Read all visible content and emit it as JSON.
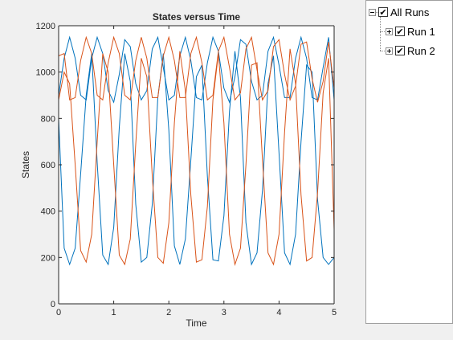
{
  "chart_data": {
    "type": "line",
    "title": "States versus Time",
    "xlabel": "Time",
    "ylabel": "States",
    "xlim": [
      0,
      5
    ],
    "ylim": [
      0,
      1200
    ],
    "xticks": [
      "0",
      "1",
      "2",
      "3",
      "4",
      "5"
    ],
    "yticks": [
      "0",
      "200",
      "400",
      "600",
      "800",
      "1000",
      "1200"
    ],
    "grid": false,
    "series": [
      {
        "color": "#0072BD",
        "x": [
          0,
          0.1,
          0.2,
          0.3,
          0.4,
          0.5,
          0.6,
          0.7,
          0.8,
          0.9,
          1.0,
          1.1,
          1.2,
          1.3,
          1.4,
          1.5,
          1.6,
          1.7,
          1.8,
          1.9,
          2.0,
          2.1,
          2.2,
          2.3,
          2.4,
          2.5,
          2.6,
          2.7,
          2.8,
          2.9,
          3.0,
          3.1,
          3.2,
          3.3,
          3.4,
          3.5,
          3.6,
          3.7,
          3.8,
          3.9,
          4.0,
          4.1,
          4.2,
          4.3,
          4.4,
          4.5,
          4.6,
          4.7,
          4.8,
          4.9,
          5.0
        ],
        "y": [
          800,
          240,
          170,
          240,
          560,
          900,
          1080,
          610,
          210,
          170,
          330,
          760,
          1080,
          960,
          430,
          180,
          200,
          430,
          890,
          1080,
          750,
          250,
          170,
          280,
          620,
          980,
          1030,
          550,
          190,
          185,
          380,
          830,
          1090,
          890,
          350,
          170,
          220,
          490,
          950,
          1070,
          650,
          220,
          170,
          300,
          700,
          1030,
          1000,
          450,
          200,
          170,
          200
        ]
      },
      {
        "color": "#0072BD",
        "x": [
          0,
          0.1,
          0.2,
          0.3,
          0.4,
          0.5,
          0.6,
          0.7,
          0.8,
          0.9,
          1.0,
          1.1,
          1.2,
          1.3,
          1.4,
          1.5,
          1.6,
          1.7,
          1.8,
          1.9,
          2.0,
          2.1,
          2.2,
          2.3,
          2.4,
          2.5,
          2.6,
          2.7,
          2.8,
          2.9,
          3.0,
          3.1,
          3.2,
          3.3,
          3.4,
          3.5,
          3.6,
          3.7,
          3.8,
          3.9,
          4.0,
          4.1,
          4.2,
          4.3,
          4.4,
          4.5,
          4.6,
          4.7,
          4.8,
          4.9,
          5.0
        ],
        "y": [
          900,
          1060,
          1150,
          1060,
          900,
          880,
          1060,
          1150,
          1080,
          920,
          870,
          990,
          1140,
          1110,
          950,
          880,
          920,
          1100,
          1150,
          1020,
          880,
          900,
          1070,
          1150,
          1050,
          890,
          880,
          1040,
          1150,
          1090,
          930,
          870,
          980,
          1140,
          1120,
          960,
          880,
          900,
          1090,
          1150,
          1030,
          890,
          890,
          1060,
          1150,
          1060,
          890,
          880,
          1020,
          1150,
          880
        ]
      },
      {
        "color": "#D95319",
        "x": [
          0,
          0.1,
          0.2,
          0.3,
          0.4,
          0.5,
          0.6,
          0.7,
          0.8,
          0.9,
          1.0,
          1.1,
          1.2,
          1.3,
          1.4,
          1.5,
          1.6,
          1.7,
          1.8,
          1.9,
          2.0,
          2.1,
          2.2,
          2.3,
          2.4,
          2.5,
          2.6,
          2.7,
          2.8,
          2.9,
          3.0,
          3.1,
          3.2,
          3.3,
          3.4,
          3.5,
          3.6,
          3.7,
          3.8,
          3.9,
          4.0,
          4.1,
          4.2,
          4.3,
          4.4,
          4.5,
          4.6,
          4.7,
          4.8,
          4.9,
          5.0
        ],
        "y": [
          880,
          1000,
          950,
          600,
          230,
          180,
          300,
          700,
          1080,
          1000,
          600,
          210,
          170,
          280,
          690,
          1060,
          980,
          550,
          200,
          175,
          350,
          780,
          1090,
          920,
          470,
          180,
          190,
          420,
          880,
          1080,
          780,
          300,
          170,
          240,
          600,
          1030,
          1040,
          620,
          220,
          170,
          300,
          740,
          1100,
          950,
          470,
          185,
          200,
          480,
          910,
          1060,
          320
        ]
      },
      {
        "color": "#D95319",
        "x": [
          0,
          0.1,
          0.2,
          0.3,
          0.4,
          0.5,
          0.6,
          0.7,
          0.8,
          0.9,
          1.0,
          1.1,
          1.2,
          1.3,
          1.4,
          1.5,
          1.6,
          1.7,
          1.8,
          1.9,
          2.0,
          2.1,
          2.2,
          2.3,
          2.4,
          2.5,
          2.6,
          2.7,
          2.8,
          2.9,
          3.0,
          3.1,
          3.2,
          3.3,
          3.4,
          3.5,
          3.6,
          3.7,
          3.8,
          3.9,
          4.0,
          4.1,
          4.2,
          4.3,
          4.4,
          4.5,
          4.6,
          4.7,
          4.8,
          4.9,
          5.0
        ],
        "y": [
          1070,
          1080,
          880,
          890,
          1050,
          1150,
          1080,
          900,
          880,
          1040,
          1150,
          1080,
          900,
          880,
          1050,
          1150,
          1060,
          890,
          890,
          1070,
          1150,
          1050,
          890,
          890,
          1080,
          1150,
          1040,
          880,
          900,
          1090,
          1150,
          1020,
          880,
          910,
          1100,
          1150,
          1010,
          880,
          920,
          1110,
          1140,
          990,
          880,
          940,
          1120,
          1130,
          970,
          870,
          960,
          1130,
          930
        ]
      }
    ]
  },
  "tree": {
    "root_label": "All Runs",
    "runs": [
      {
        "label": "Run 1"
      },
      {
        "label": "Run 2"
      }
    ],
    "check_glyph": "✔"
  }
}
